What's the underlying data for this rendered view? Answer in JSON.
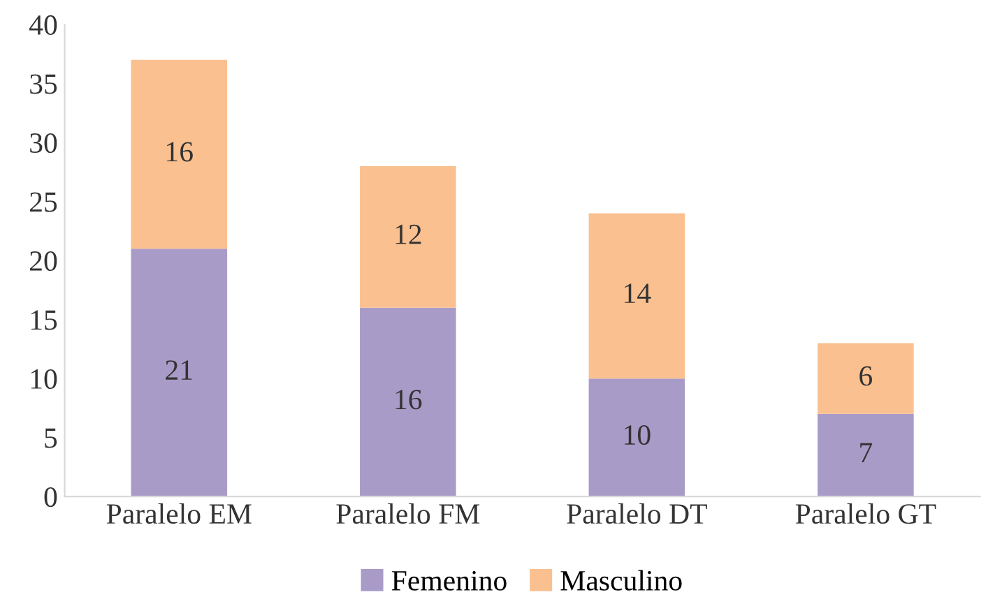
{
  "chart_data": {
    "type": "bar",
    "stacked": true,
    "categories": [
      "Paralelo EM",
      "Paralelo FM",
      "Paralelo DT",
      "Paralelo GT"
    ],
    "series": [
      {
        "name": "Femenino",
        "color": "#a99bc8",
        "values": [
          21,
          16,
          10,
          7
        ]
      },
      {
        "name": "Masculino",
        "color": "#fac090",
        "values": [
          16,
          12,
          14,
          6
        ]
      }
    ],
    "ylim": [
      0,
      40
    ],
    "yticks": [
      0,
      5,
      10,
      15,
      20,
      25,
      30,
      35,
      40
    ],
    "grid": false,
    "legend": "bottom",
    "data_labels": true
  }
}
